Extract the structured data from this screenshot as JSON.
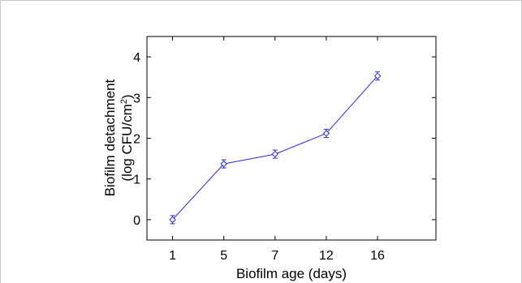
{
  "chart_data": {
    "type": "line",
    "categories": [
      "1",
      "5",
      "7",
      "12",
      "16"
    ],
    "series": [
      {
        "values": [
          0.0,
          1.37,
          1.61,
          2.12,
          3.53
        ],
        "errors": [
          0.1,
          0.1,
          0.1,
          0.1,
          0.1
        ],
        "color": "#2b2bd6",
        "marker": "diamond"
      }
    ],
    "xlabel": "Biofilm age (days)",
    "ylabel_line1": "Biofilm detachment",
    "ylabel_line2_prefix": "(log CFU/cm",
    "ylabel_line2_sup": "2",
    "ylabel_line2_suffix": ")",
    "ylim": [
      -0.5,
      4.5
    ],
    "yticks": [
      "0",
      "1",
      "2",
      "3",
      "4"
    ],
    "grid": false
  }
}
